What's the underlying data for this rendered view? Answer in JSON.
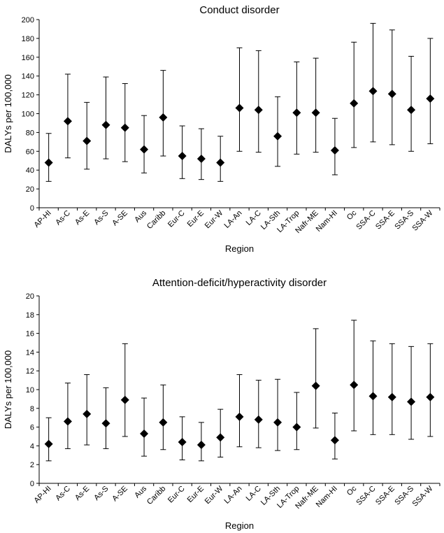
{
  "chart_data": [
    {
      "type": "scatter",
      "title": "Conduct disorder",
      "xlabel": "Region",
      "ylabel": "DALYs per 100,000",
      "ylim": [
        0,
        200
      ],
      "yticks": [
        0,
        20,
        40,
        60,
        80,
        100,
        120,
        140,
        160,
        180,
        200
      ],
      "grid": false,
      "categories": [
        "AP-HI",
        "As-C",
        "As-E",
        "As-S",
        "A-SE",
        "Aus",
        "Caribb",
        "Eur-C",
        "Eur-E",
        "Eur-W",
        "LA-An",
        "LA-C",
        "LA-Sth",
        "LA-Trop",
        "Nafr-ME",
        "Nam-HI",
        "Oc",
        "SSA-C",
        "SSA-E",
        "SSA-S",
        "SSA-W"
      ],
      "values": [
        48,
        92,
        71,
        88,
        85,
        62,
        96,
        55,
        52,
        48,
        106,
        104,
        76,
        101,
        101,
        61,
        111,
        124,
        121,
        104,
        116
      ],
      "lower": [
        28,
        53,
        41,
        52,
        49,
        37,
        55,
        31,
        30,
        28,
        60,
        59,
        44,
        57,
        59,
        35,
        64,
        70,
        67,
        60,
        68
      ],
      "upper": [
        79,
        142,
        112,
        139,
        132,
        98,
        146,
        87,
        84,
        76,
        170,
        167,
        118,
        155,
        159,
        95,
        176,
        196,
        189,
        161,
        180
      ]
    },
    {
      "type": "scatter",
      "title": "Attention-deficit/hyperactivity disorder",
      "xlabel": "Region",
      "ylabel": "DALYs per 100,000",
      "ylim": [
        0,
        20
      ],
      "yticks": [
        0,
        2,
        4,
        6,
        8,
        10,
        12,
        14,
        16,
        18,
        20
      ],
      "grid": false,
      "categories": [
        "AP-HI",
        "As-C",
        "As-E",
        "As-S",
        "A-SE",
        "Aus",
        "Caribb",
        "Eur-C",
        "Eur-E",
        "Eur-W",
        "LA-An",
        "LA-C",
        "LA-Sth",
        "LA-Trop",
        "Nafr-ME",
        "Nam-HI",
        "Oc",
        "SSA-C",
        "SSA-E",
        "SSA-S",
        "SSA-W"
      ],
      "values": [
        4.2,
        6.6,
        7.4,
        6.4,
        8.9,
        5.3,
        6.5,
        4.4,
        4.1,
        4.9,
        7.1,
        6.8,
        6.5,
        6.0,
        10.4,
        4.6,
        10.5,
        9.3,
        9.2,
        8.7,
        9.2
      ],
      "lower": [
        2.4,
        3.7,
        4.1,
        3.7,
        5.0,
        2.9,
        3.6,
        2.5,
        2.4,
        2.8,
        3.9,
        3.8,
        3.5,
        3.6,
        5.9,
        2.6,
        5.6,
        5.2,
        5.2,
        4.7,
        5.0
      ],
      "upper": [
        7.0,
        10.7,
        11.6,
        10.2,
        14.9,
        9.1,
        10.5,
        7.1,
        6.5,
        7.9,
        11.6,
        11.0,
        11.1,
        9.7,
        16.5,
        7.5,
        17.4,
        15.2,
        14.9,
        14.6,
        14.9
      ]
    }
  ]
}
